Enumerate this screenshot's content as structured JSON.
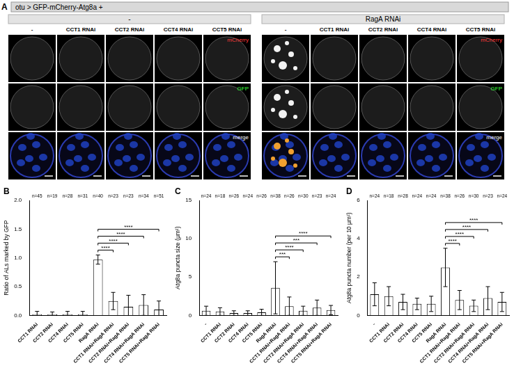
{
  "panel_a": {
    "letter": "A",
    "title": "otu > GFP-mCherry-Atg8a +",
    "groups": [
      {
        "label": "-",
        "columns": [
          "-",
          "CCT1 RNAi",
          "CCT2 RNAi",
          "CCT4 RNAi",
          "CCT5 RNAi"
        ]
      },
      {
        "label": "RagA RNAi",
        "columns": [
          "-",
          "CCT1 RNAi",
          "CCT2 RNAi",
          "CCT4 RNAi",
          "CCT5 RNAi"
        ]
      }
    ],
    "channels": [
      "mCherry",
      "GFP",
      "merge"
    ]
  },
  "chart_data": [
    {
      "letter": "B",
      "type": "bar",
      "y_label": "Ratio of ALs marked by GFP",
      "categories": [
        "CCT1 RNAi",
        "CCT2 RNAi",
        "CCT4 RNAi",
        "CCT5 RNAi",
        "RagA RNAi",
        "CCT1 RNAi+RagA RNAi",
        "CCT2 RNAi+RagA RNAi",
        "CCT4 RNAi+RagA RNAi",
        "CCT5 RNAi+RagA RNAi"
      ],
      "values": [
        0.02,
        0.02,
        0.02,
        0.02,
        0.97,
        0.25,
        0.15,
        0.18,
        0.1
      ],
      "errors": [
        0.05,
        0.04,
        0.05,
        0.05,
        0.08,
        0.15,
        0.2,
        0.18,
        0.15
      ],
      "n_labels": [
        "n=45",
        "n=19",
        "n=28",
        "n=31",
        "n=40",
        "n=23",
        "n=23",
        "n=34",
        "n=51"
      ],
      "comparisons": [
        {
          "from": "RagA RNAi",
          "to": "CCT1 RNAi+RagA RNAi",
          "label": "****"
        },
        {
          "from": "RagA RNAi",
          "to": "CCT2 RNAi+RagA RNAi",
          "label": "****"
        },
        {
          "from": "RagA RNAi",
          "to": "CCT4 RNAi+RagA RNAi",
          "label": "****"
        },
        {
          "from": "RagA RNAi",
          "to": "CCT5 RNAi+RagA RNAi",
          "label": "****"
        }
      ],
      "color": "#ffffff",
      "ylim": [
        0,
        2
      ],
      "yticks": [
        {
          "value": 0,
          "label": "0.0"
        },
        {
          "value": 0.5,
          "label": "0.5"
        },
        {
          "value": 1,
          "label": "1.0"
        },
        {
          "value": 1.5,
          "label": "1.5"
        },
        {
          "value": 2,
          "label": "2.0"
        }
      ],
      "grid": false
    },
    {
      "letter": "C",
      "type": "bar",
      "y_label": "Atg8a puncta size (μm²)",
      "categories": [
        "-",
        "CCT1 RNAi",
        "CCT2 RNAi",
        "CCT4 RNAi",
        "CCT5 RNAi",
        "RagA RNAi",
        "CCT1 RNAi+RagA RNAi",
        "CCT2 RNAi+RagA RNAi",
        "CCT4 RNAi+RagA RNAi",
        "CCT5 RNAi+RagA RNAi"
      ],
      "values": [
        0.6,
        0.5,
        0.3,
        0.3,
        0.4,
        3.6,
        1.2,
        0.6,
        1.0,
        0.7
      ],
      "errors": [
        0.6,
        0.5,
        0.3,
        0.3,
        0.4,
        3.4,
        1.2,
        0.6,
        1.0,
        0.6
      ],
      "n_labels": [
        "n=24",
        "n=18",
        "n=26",
        "n=24",
        "n=26",
        "n=38",
        "n=26",
        "n=30",
        "n=23",
        "n=24"
      ],
      "comparisons": [
        {
          "from": "RagA RNAi",
          "to": "CCT1 RNAi+RagA RNAi",
          "label": "***"
        },
        {
          "from": "RagA RNAi",
          "to": "CCT2 RNAi+RagA RNAi",
          "label": "****"
        },
        {
          "from": "RagA RNAi",
          "to": "CCT4 RNAi+RagA RNAi",
          "label": "***"
        },
        {
          "from": "RagA RNAi",
          "to": "CCT5 RNAi+RagA RNAi",
          "label": "****"
        }
      ],
      "color": "#ffffff",
      "ylim": [
        0,
        15
      ],
      "yticks": [
        0,
        5,
        10,
        15
      ],
      "grid": false
    },
    {
      "letter": "D",
      "type": "bar",
      "y_label": "Atg8a puncta number (per 10 μm²)",
      "categories": [
        "-",
        "CCT1 RNAi",
        "CCT2 RNAi",
        "CCT4 RNAi",
        "CCT5 RNAi",
        "RagA RNAi",
        "CCT1 RNAi+RagA RNAi",
        "CCT2 RNAi+RagA RNAi",
        "CCT4 RNAi+RagA RNAi",
        "CCT5 RNAi+RagA RNAi"
      ],
      "values": [
        1.1,
        1.0,
        0.7,
        0.6,
        0.6,
        2.5,
        0.8,
        0.5,
        0.9,
        0.7
      ],
      "errors": [
        0.6,
        0.5,
        0.4,
        0.3,
        0.4,
        1.0,
        0.5,
        0.3,
        0.6,
        0.5
      ],
      "n_labels": [
        "n=24",
        "n=18",
        "n=28",
        "n=24",
        "n=24",
        "n=38",
        "n=26",
        "n=30",
        "n=23",
        "n=24"
      ],
      "comparisons": [
        {
          "from": "RagA RNAi",
          "to": "CCT1 RNAi+RagA RNAi",
          "label": "****"
        },
        {
          "from": "RagA RNAi",
          "to": "CCT2 RNAi+RagA RNAi",
          "label": "****"
        },
        {
          "from": "RagA RNAi",
          "to": "CCT4 RNAi+RagA RNAi",
          "label": "****"
        },
        {
          "from": "RagA RNAi",
          "to": "CCT5 RNAi+RagA RNAi",
          "label": "****"
        }
      ],
      "color": "#ffffff",
      "ylim": [
        0,
        6
      ],
      "yticks": [
        0,
        2,
        4,
        6
      ],
      "grid": false
    }
  ]
}
